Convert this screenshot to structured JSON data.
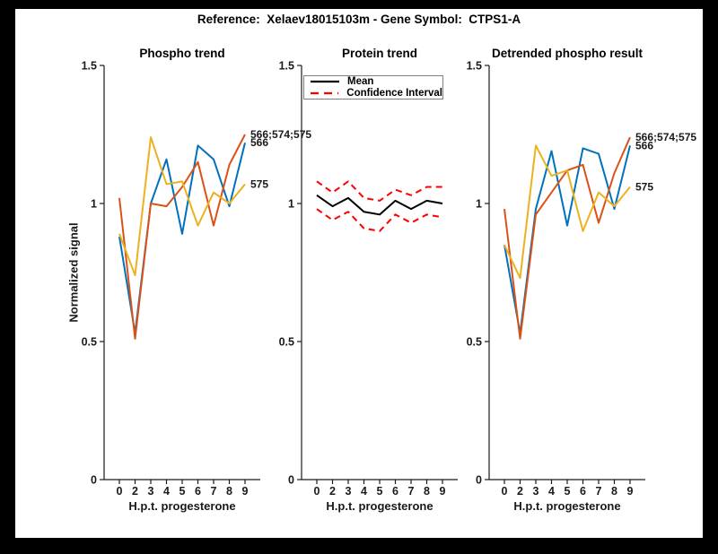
{
  "figure": {
    "title": "Reference:  Xelaev18015103m - Gene Symbol:  CTPS1-A",
    "background_color": "#000000",
    "canvas_color": "#ffffff"
  },
  "colors": {
    "series_blue": "#0072BD",
    "series_orange": "#D95319",
    "series_yellow": "#EDB120",
    "ci_red": "#FF0000",
    "mean_black": "#000000",
    "axis": "#1a1a1a"
  },
  "axes": {
    "xlabel": "H.p.t. progesterone",
    "ylabel": "Normalized signal",
    "xticklabels": [
      "0",
      "2",
      "3",
      "4",
      "5",
      "6",
      "7",
      "8",
      "9"
    ],
    "yticks": [
      0,
      0.5,
      1,
      1.5
    ],
    "yticklabels": [
      "0",
      "0.5",
      "1",
      "1.5"
    ],
    "ylim": [
      0,
      1.5
    ]
  },
  "chart_data": [
    {
      "type": "line",
      "title": "Phospho trend",
      "xlabel": "H.p.t. progesterone",
      "ylabel": "Normalized signal",
      "x_labels": [
        "0",
        "2",
        "3",
        "4",
        "5",
        "6",
        "7",
        "8",
        "9"
      ],
      "ylim": [
        0,
        1.5
      ],
      "grid": false,
      "series": [
        {
          "name": "566",
          "color": "#0072BD",
          "style": "solid",
          "end_label": true,
          "values": [
            0.88,
            0.53,
            1.0,
            1.16,
            0.89,
            1.21,
            1.16,
            0.99,
            1.22
          ]
        },
        {
          "name": "566;574;575",
          "color": "#D95319",
          "style": "solid",
          "end_label": true,
          "values": [
            1.02,
            0.51,
            1.0,
            0.99,
            1.06,
            1.15,
            0.92,
            1.14,
            1.25
          ]
        },
        {
          "name": "575",
          "color": "#EDB120",
          "style": "solid",
          "end_label": true,
          "values": [
            0.89,
            0.74,
            1.24,
            1.07,
            1.08,
            0.92,
            1.04,
            1.0,
            1.07
          ]
        }
      ]
    },
    {
      "type": "line",
      "title": "Protein trend",
      "xlabel": "H.p.t. progesterone",
      "x_labels": [
        "0",
        "2",
        "3",
        "4",
        "5",
        "6",
        "7",
        "8",
        "9"
      ],
      "ylim": [
        0,
        1.5
      ],
      "grid": false,
      "legend": [
        {
          "label": "Mean",
          "color": "#000000",
          "style": "solid"
        },
        {
          "label": "Confidence Interval",
          "color": "#FF0000",
          "style": "dashed"
        }
      ],
      "series": [
        {
          "name": "Mean",
          "color": "#000000",
          "style": "solid",
          "end_label": false,
          "values": [
            1.03,
            0.99,
            1.02,
            0.97,
            0.96,
            1.01,
            0.98,
            1.01,
            1.0
          ]
        },
        {
          "name": "CI-upper",
          "color": "#FF0000",
          "style": "dashed",
          "end_label": false,
          "values": [
            1.08,
            1.04,
            1.08,
            1.02,
            1.01,
            1.05,
            1.03,
            1.06,
            1.06
          ]
        },
        {
          "name": "CI-lower",
          "color": "#FF0000",
          "style": "dashed",
          "end_label": false,
          "values": [
            0.98,
            0.94,
            0.97,
            0.91,
            0.9,
            0.96,
            0.93,
            0.96,
            0.95
          ]
        }
      ]
    },
    {
      "type": "line",
      "title": "Detrended phospho result",
      "xlabel": "H.p.t. progesterone",
      "x_labels": [
        "0",
        "2",
        "3",
        "4",
        "5",
        "6",
        "7",
        "8",
        "9"
      ],
      "ylim": [
        0,
        1.5
      ],
      "grid": false,
      "series": [
        {
          "name": "566",
          "color": "#0072BD",
          "style": "solid",
          "end_label": true,
          "values": [
            0.85,
            0.53,
            0.98,
            1.19,
            0.92,
            1.2,
            1.18,
            0.98,
            1.21
          ]
        },
        {
          "name": "566;574;575",
          "color": "#D95319",
          "style": "solid",
          "end_label": true,
          "values": [
            0.98,
            0.51,
            0.96,
            1.04,
            1.12,
            1.14,
            0.93,
            1.11,
            1.24
          ]
        },
        {
          "name": "575",
          "color": "#EDB120",
          "style": "solid",
          "end_label": true,
          "values": [
            0.85,
            0.73,
            1.21,
            1.1,
            1.12,
            0.9,
            1.04,
            0.99,
            1.06
          ]
        }
      ]
    }
  ]
}
